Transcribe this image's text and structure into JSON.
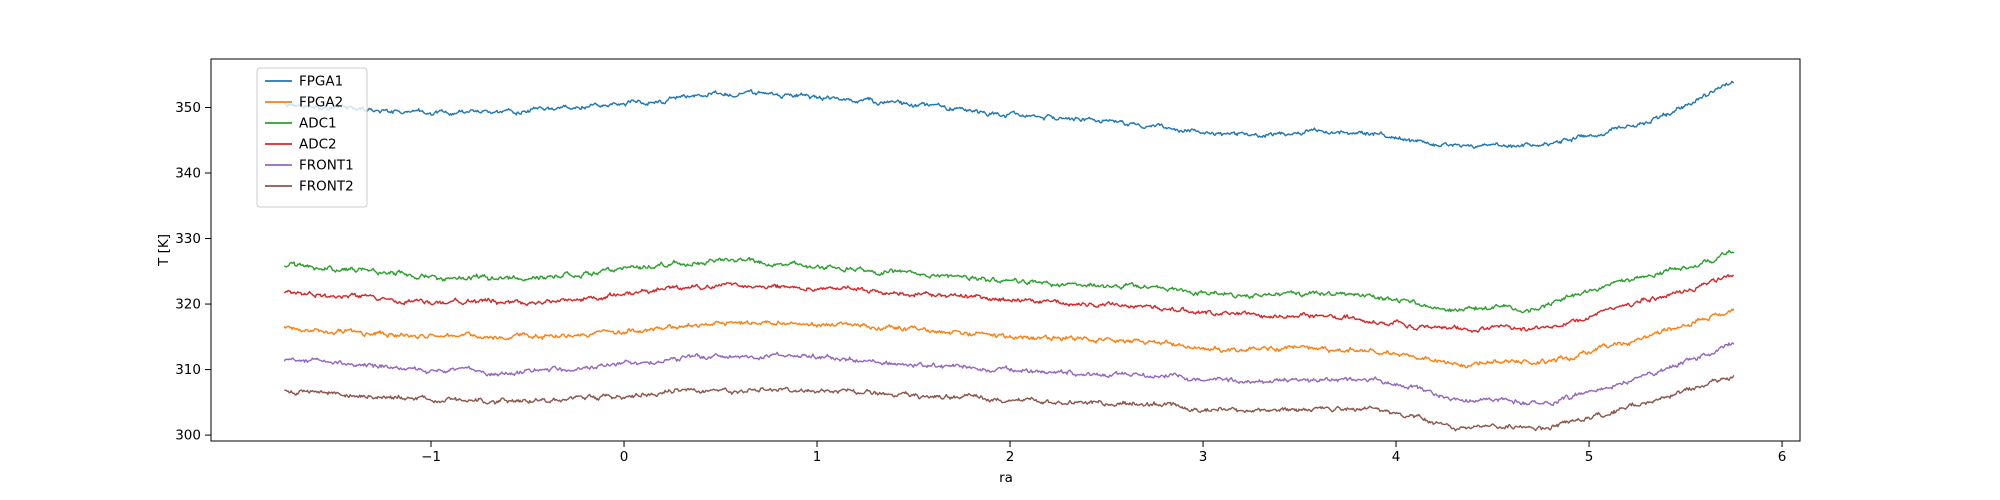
{
  "chart_data": {
    "type": "line",
    "title": "",
    "xlabel": "ra",
    "ylabel": "T [K]",
    "xlim": [
      -2.14,
      6.093
    ],
    "ylim": [
      299.1,
      357.4
    ],
    "x_ticks": [
      -1,
      0,
      1,
      2,
      3,
      4,
      5,
      6
    ],
    "x_tick_labels": [
      "−1",
      "0",
      "1",
      "2",
      "3",
      "4",
      "5",
      "6"
    ],
    "y_ticks": [
      300,
      310,
      320,
      330,
      340,
      350
    ],
    "y_tick_labels": [
      "300",
      "310",
      "320",
      "330",
      "340",
      "350"
    ],
    "grid": false,
    "legend_position": "upper left",
    "noise_amplitude": 0.22,
    "x_control": [
      -1.76,
      -1.5,
      -1.2,
      -0.9,
      -0.6,
      -0.3,
      0.0,
      0.3,
      0.55,
      0.8,
      1.1,
      1.4,
      1.7,
      2.0,
      2.4,
      2.8,
      3.0,
      3.3,
      3.6,
      3.9,
      4.15,
      4.35,
      4.55,
      4.7,
      4.9,
      5.1,
      5.3,
      5.5,
      5.65,
      5.75
    ],
    "series": [
      {
        "name": "FPGA1",
        "color": "#1f77b4",
        "values": [
          350.4,
          350.0,
          349.5,
          349.2,
          349.4,
          349.8,
          350.5,
          351.5,
          352.1,
          352.0,
          351.4,
          350.7,
          349.9,
          349.0,
          348.0,
          347.0,
          346.1,
          345.8,
          346.3,
          345.9,
          344.6,
          344.1,
          344.4,
          344.2,
          345.0,
          346.3,
          348.0,
          350.3,
          352.4,
          354.3
        ]
      },
      {
        "name": "FPGA2",
        "color": "#ff7f0e",
        "values": [
          316.4,
          316.0,
          315.4,
          315.1,
          315.1,
          315.4,
          315.9,
          316.7,
          317.2,
          317.2,
          316.8,
          316.2,
          315.6,
          315.1,
          314.5,
          314.0,
          313.2,
          313.1,
          313.2,
          312.8,
          311.6,
          310.8,
          311.2,
          310.9,
          311.9,
          313.4,
          315.0,
          316.8,
          318.2,
          319.2
        ]
      },
      {
        "name": "ADC1",
        "color": "#2ca02c",
        "values": [
          325.8,
          325.4,
          324.7,
          324.1,
          324.0,
          324.5,
          325.4,
          326.2,
          326.6,
          326.3,
          325.6,
          324.8,
          324.1,
          323.5,
          322.9,
          322.3,
          321.6,
          321.3,
          321.6,
          321.2,
          319.9,
          319.2,
          319.6,
          319.3,
          321.2,
          322.8,
          324.2,
          325.7,
          326.9,
          328.0
        ]
      },
      {
        "name": "ADC2",
        "color": "#d62728",
        "values": [
          321.7,
          321.3,
          320.7,
          320.3,
          320.2,
          320.6,
          321.6,
          322.4,
          322.8,
          322.7,
          322.3,
          321.8,
          321.2,
          320.6,
          320.0,
          319.4,
          318.6,
          318.4,
          318.3,
          317.4,
          316.5,
          316.0,
          316.4,
          316.1,
          317.2,
          318.8,
          320.6,
          322.2,
          323.5,
          324.5
        ]
      },
      {
        "name": "FRONT1",
        "color": "#9467bd",
        "values": [
          311.4,
          311.0,
          310.3,
          309.8,
          309.7,
          310.0,
          310.7,
          311.5,
          312.0,
          312.1,
          311.7,
          311.0,
          310.4,
          309.9,
          309.4,
          309.0,
          308.3,
          308.2,
          308.4,
          308.5,
          306.6,
          305.3,
          305.6,
          304.9,
          305.8,
          307.3,
          309.2,
          311.2,
          312.8,
          313.9
        ]
      },
      {
        "name": "FRONT2",
        "color": "#8c564b",
        "values": [
          306.9,
          306.5,
          305.8,
          305.3,
          305.2,
          305.5,
          306.0,
          306.6,
          306.9,
          307.0,
          306.7,
          306.2,
          305.8,
          305.4,
          305.0,
          304.7,
          303.9,
          303.8,
          303.9,
          303.8,
          302.3,
          301.1,
          301.5,
          300.9,
          301.9,
          303.4,
          305.1,
          306.8,
          308.0,
          308.7
        ]
      }
    ],
    "legend": {
      "items": [
        "FPGA1",
        "FPGA2",
        "ADC1",
        "ADC2",
        "FRONT1",
        "FRONT2"
      ]
    }
  }
}
